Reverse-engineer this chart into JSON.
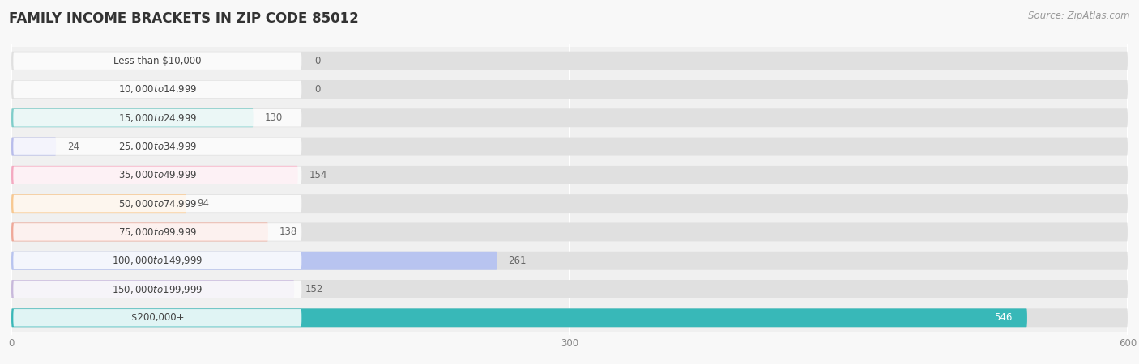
{
  "title": "FAMILY INCOME BRACKETS IN ZIP CODE 85012",
  "source": "Source: ZipAtlas.com",
  "categories": [
    "Less than $10,000",
    "$10,000 to $14,999",
    "$15,000 to $24,999",
    "$25,000 to $34,999",
    "$35,000 to $49,999",
    "$50,000 to $74,999",
    "$75,000 to $99,999",
    "$100,000 to $149,999",
    "$150,000 to $199,999",
    "$200,000+"
  ],
  "values": [
    0,
    0,
    130,
    24,
    154,
    94,
    138,
    261,
    152,
    546
  ],
  "bar_colors": [
    "#aac8e8",
    "#c8b0d8",
    "#7ececa",
    "#b8bcec",
    "#f5a8c0",
    "#f8c890",
    "#f0a898",
    "#b8c4f0",
    "#c8b8dc",
    "#38b8b8"
  ],
  "xlim_max": 600,
  "xticks": [
    0,
    300,
    600
  ],
  "bg_color": "#f8f8f8",
  "row_bg": "#ececec",
  "bar_bg": "#e0e0e0",
  "title_fontsize": 12,
  "source_fontsize": 8.5,
  "label_fontsize": 8.5,
  "cat_fontsize": 8.5
}
